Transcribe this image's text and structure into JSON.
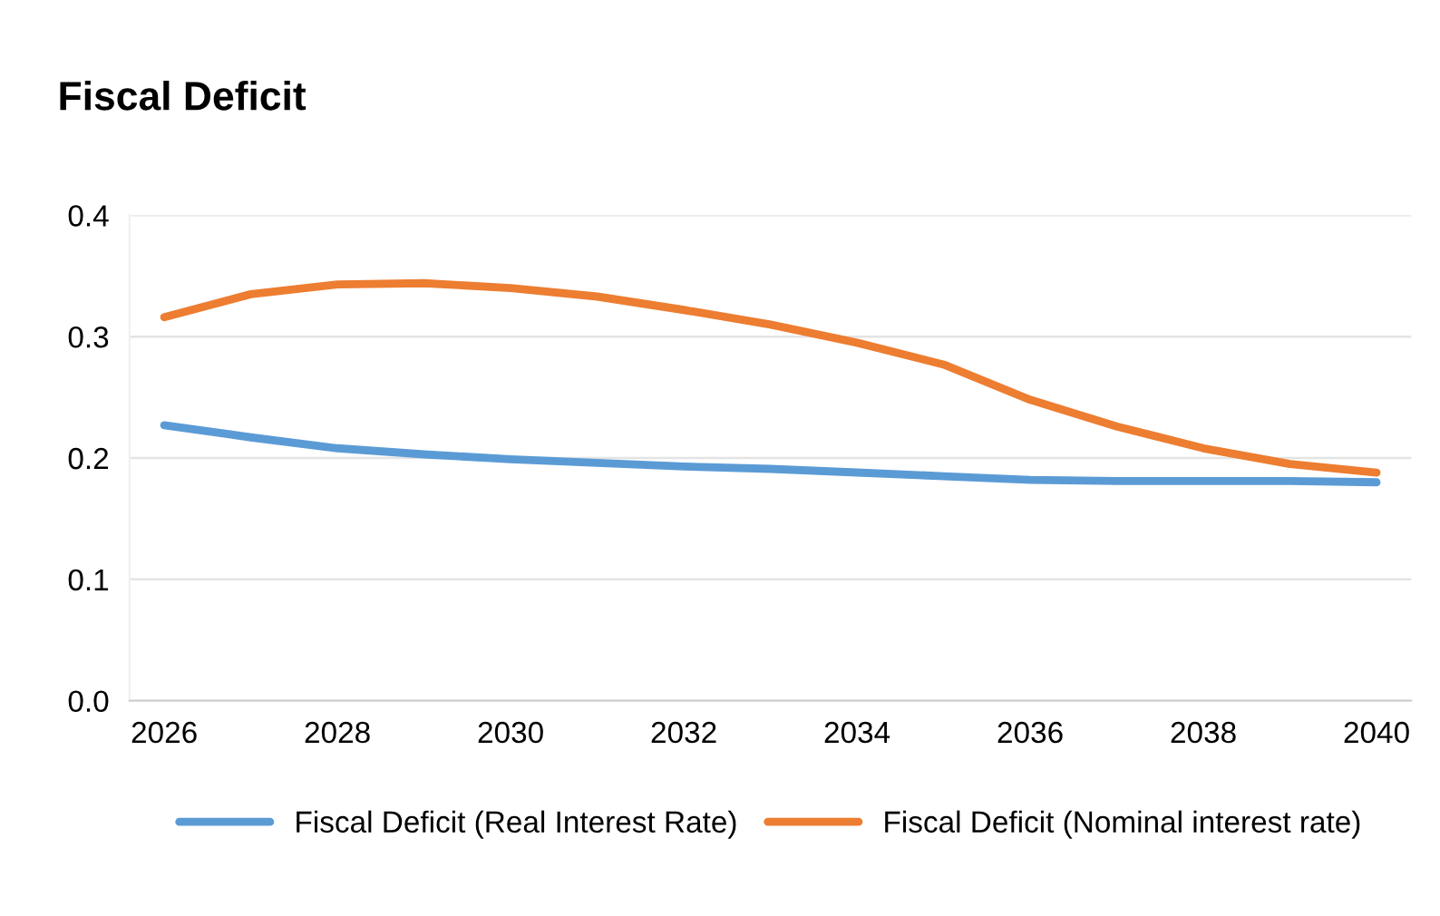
{
  "chart_data": {
    "type": "line",
    "title": "Fiscal Deficit",
    "x": [
      2026,
      2027,
      2028,
      2029,
      2030,
      2031,
      2032,
      2033,
      2034,
      2035,
      2036,
      2037,
      2038,
      2039,
      2040
    ],
    "series": [
      {
        "name": "Fiscal Deficit (Real Interest Rate)",
        "color": "#5b9bd5",
        "values": [
          0.227,
          0.217,
          0.208,
          0.203,
          0.199,
          0.196,
          0.193,
          0.191,
          0.188,
          0.185,
          0.182,
          0.181,
          0.181,
          0.181,
          0.18
        ]
      },
      {
        "name": "Fiscal Deficit (Nominal interest rate)",
        "color": "#ed7d31",
        "values": [
          0.316,
          0.335,
          0.343,
          0.344,
          0.34,
          0.333,
          0.322,
          0.31,
          0.295,
          0.277,
          0.248,
          0.226,
          0.208,
          0.195,
          0.188
        ]
      }
    ],
    "xlim": [
      2025.6,
      2040.4
    ],
    "xticks": [
      2026,
      2028,
      2030,
      2032,
      2034,
      2036,
      2038,
      2040
    ],
    "ylim": [
      0,
      0.4
    ],
    "yticks": [
      {
        "value": 0,
        "label": "0.0"
      },
      0.1,
      0.2,
      0.3,
      0.4
    ],
    "grid": "y",
    "legend": "bottom",
    "marker": "none",
    "line_style": "solid"
  }
}
